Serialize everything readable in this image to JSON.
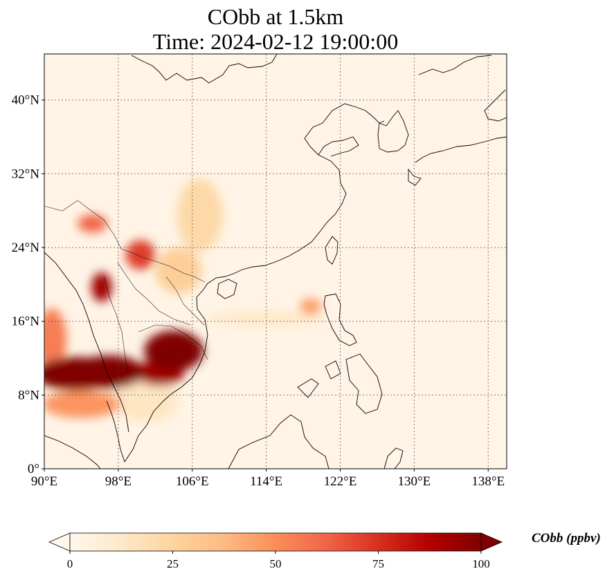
{
  "title": {
    "line1": "CObb at 1.5km",
    "line2": "Time: 2024-02-12 19:00:00"
  },
  "map": {
    "projection": "PlateCarree",
    "lon_range": [
      90,
      140
    ],
    "lat_range": [
      0,
      45
    ],
    "gridlines": true,
    "lat_ticks": [
      {
        "value": 0,
        "label": "0°"
      },
      {
        "value": 8,
        "label": "8°N"
      },
      {
        "value": 16,
        "label": "16°N"
      },
      {
        "value": 24,
        "label": "24°N"
      },
      {
        "value": 32,
        "label": "32°N"
      },
      {
        "value": 40,
        "label": "40°N"
      }
    ],
    "lon_ticks": [
      {
        "value": 90,
        "label": "90°E"
      },
      {
        "value": 98,
        "label": "98°E"
      },
      {
        "value": 106,
        "label": "106°E"
      },
      {
        "value": 114,
        "label": "114°E"
      },
      {
        "value": 122,
        "label": "122°E"
      },
      {
        "value": 130,
        "label": "130°E"
      },
      {
        "value": 138,
        "label": "138°E"
      }
    ]
  },
  "colorbar": {
    "label": "CObb (ppbv)",
    "colormap": "OrRd",
    "extend": "both",
    "range": [
      0,
      100
    ],
    "ticks": [
      {
        "value": 0,
        "label": "0"
      },
      {
        "value": 25,
        "label": "25"
      },
      {
        "value": 50,
        "label": "50"
      },
      {
        "value": 75,
        "label": "75"
      },
      {
        "value": 100,
        "label": "100"
      }
    ],
    "stops": [
      "#fff7ec",
      "#fee8c8",
      "#fdd49e",
      "#fdbb84",
      "#fc8d59",
      "#ef6548",
      "#d7301f",
      "#b30000",
      "#7f0000"
    ]
  },
  "plumes": [
    {
      "name": "bay-of-bengal-band",
      "lon": 93.5,
      "lat": 10.3,
      "rlon": 4.5,
      "rlat": 1.8,
      "value": 100
    },
    {
      "name": "thailand-band",
      "lon": 97,
      "lat": 10.5,
      "rlon": 3.8,
      "rlat": 1.8,
      "value": 100
    },
    {
      "name": "cambodia-core",
      "lon": 104,
      "lat": 12.8,
      "rlon": 3.2,
      "rlat": 2.2,
      "value": 100
    },
    {
      "name": "cambodia-south",
      "lon": 102.5,
      "lat": 10.4,
      "rlon": 2.6,
      "rlat": 1.4,
      "value": 92
    },
    {
      "name": "myanmar-patch",
      "lon": 96.2,
      "lat": 19.7,
      "rlon": 1.1,
      "rlat": 1.6,
      "value": 92
    },
    {
      "name": "laos-patch",
      "lon": 100.4,
      "lat": 23.2,
      "rlon": 1.6,
      "rlat": 1.6,
      "value": 72
    },
    {
      "name": "yunnan-west",
      "lon": 95.2,
      "lat": 26.6,
      "rlon": 1.6,
      "rlat": 1.0,
      "value": 62
    },
    {
      "name": "west-margin",
      "lon": 90.8,
      "lat": 14,
      "rlon": 1.6,
      "rlat": 3.4,
      "value": 55
    },
    {
      "name": "south-india-sea",
      "lon": 94,
      "lat": 7,
      "rlon": 4.2,
      "rlat": 1.5,
      "value": 48
    },
    {
      "name": "southern-china-haze",
      "lon": 106.8,
      "lat": 27.5,
      "rlon": 2.5,
      "rlat": 4.0,
      "value": 22
    },
    {
      "name": "northern-vietnam",
      "lon": 104.5,
      "lat": 21.5,
      "rlon": 2.5,
      "rlat": 2.5,
      "value": 28
    },
    {
      "name": "scs-band",
      "lon": 114,
      "lat": 16.3,
      "rlon": 6.5,
      "rlat": 0.8,
      "value": 12
    },
    {
      "name": "luzon-strait",
      "lon": 118.8,
      "lat": 17.6,
      "rlon": 1.2,
      "rlat": 0.9,
      "value": 45
    },
    {
      "name": "gulf-of-thailand-haze",
      "lon": 101,
      "lat": 7.5,
      "rlon": 3.5,
      "rlat": 2.5,
      "value": 14
    }
  ]
}
